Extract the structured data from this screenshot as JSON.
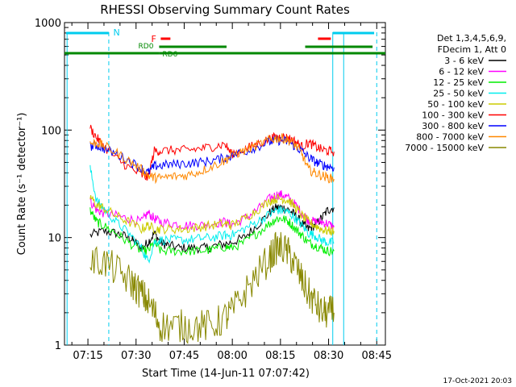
{
  "chart_data": {
    "type": "line",
    "title": "RHESSI Observing Summary Count Rates",
    "xlabel": "Start Time (14-Jun-11 07:07:42)",
    "ylabel": "Count Rate (s⁻¹ detector⁻¹)",
    "y_scale": "log",
    "ylim": [
      1,
      1000
    ],
    "xlim_minutes": [
      0,
      100
    ],
    "x_ticks": [
      {
        "label": "07:15",
        "minute": 7.3
      },
      {
        "label": "07:30",
        "minute": 22.3
      },
      {
        "label": "07:45",
        "minute": 37.3
      },
      {
        "label": "08:00",
        "minute": 52.3
      },
      {
        "label": "08:15",
        "minute": 67.3
      },
      {
        "label": "08:30",
        "minute": 82.3
      },
      {
        "label": "08:45",
        "minute": 97.3
      }
    ],
    "y_ticks": [
      {
        "label": "1",
        "value": 1
      },
      {
        "label": "10",
        "value": 10
      },
      {
        "label": "100",
        "value": 100
      },
      {
        "label": "1000",
        "value": 1000
      }
    ],
    "legend": {
      "placement": "right",
      "header": [
        "Det 1,3,4,5,6,9,",
        "FDecim 1, Att 0"
      ],
      "entries": [
        {
          "label": "3 - 6 keV",
          "color": "#000000"
        },
        {
          "label": "6 - 12 keV",
          "color": "#ff00ff"
        },
        {
          "label": "12 - 25 keV",
          "color": "#00ee00"
        },
        {
          "label": "25 - 50 keV",
          "color": "#00eeee"
        },
        {
          "label": "50 - 100 keV",
          "color": "#cccc00"
        },
        {
          "label": "100 - 300 keV",
          "color": "#ff0000"
        },
        {
          "label": "300 - 800 keV",
          "color": "#0000ff"
        },
        {
          "label": "800 - 7000 keV",
          "color": "#ff8800"
        },
        {
          "label": "7000 - 15000 keV",
          "color": "#888800"
        }
      ]
    },
    "flags": [
      {
        "label": "N",
        "color": "#00ccee"
      },
      {
        "label": "F",
        "color": "#ff0000"
      },
      {
        "label": "RD0",
        "color": "#008800"
      },
      {
        "label": "RD6",
        "color": "#008800"
      }
    ],
    "series": [
      {
        "name": "3 - 6 keV",
        "color": "#000000",
        "points": [
          [
            8,
            10.5
          ],
          [
            12,
            11.5
          ],
          [
            16,
            11
          ],
          [
            20,
            10
          ],
          [
            22,
            9
          ],
          [
            24,
            8
          ],
          [
            26,
            9
          ],
          [
            28,
            11
          ],
          [
            30,
            9
          ],
          [
            32,
            8.5
          ],
          [
            36,
            8
          ],
          [
            40,
            8
          ],
          [
            44,
            8
          ],
          [
            48,
            8.5
          ],
          [
            52,
            9
          ],
          [
            56,
            10
          ],
          [
            60,
            13
          ],
          [
            64,
            17
          ],
          [
            66,
            19
          ],
          [
            68,
            19
          ],
          [
            70,
            18
          ],
          [
            72,
            16
          ],
          [
            74,
            13.5
          ],
          [
            76,
            12
          ],
          [
            78,
            13
          ],
          [
            80,
            15
          ],
          [
            82,
            18
          ],
          [
            84,
            19
          ]
        ]
      },
      {
        "name": "6 - 12 keV",
        "color": "#ff00ff",
        "points": [
          [
            8,
            22
          ],
          [
            10,
            18
          ],
          [
            12,
            17
          ],
          [
            16,
            16
          ],
          [
            20,
            15
          ],
          [
            24,
            14
          ],
          [
            26,
            17
          ],
          [
            28,
            15
          ],
          [
            30,
            14
          ],
          [
            34,
            13.5
          ],
          [
            38,
            13
          ],
          [
            42,
            13
          ],
          [
            46,
            13.5
          ],
          [
            50,
            14
          ],
          [
            52,
            13
          ],
          [
            56,
            15
          ],
          [
            60,
            18
          ],
          [
            64,
            23
          ],
          [
            66,
            25
          ],
          [
            68,
            25
          ],
          [
            70,
            23
          ],
          [
            72,
            20
          ],
          [
            74,
            17
          ],
          [
            76,
            14.5
          ],
          [
            78,
            14
          ],
          [
            80,
            14
          ],
          [
            82,
            13.5
          ],
          [
            84,
            12.5
          ]
        ]
      },
      {
        "name": "12 - 25 keV",
        "color": "#00ee00",
        "points": [
          [
            8,
            18
          ],
          [
            10,
            14
          ],
          [
            12,
            13
          ],
          [
            16,
            11
          ],
          [
            20,
            9
          ],
          [
            24,
            7.5
          ],
          [
            26,
            7.5
          ],
          [
            28,
            9
          ],
          [
            30,
            7.5
          ],
          [
            34,
            7.5
          ],
          [
            38,
            7.5
          ],
          [
            42,
            7.5
          ],
          [
            46,
            7.7
          ],
          [
            50,
            8.2
          ],
          [
            52,
            8
          ],
          [
            56,
            9
          ],
          [
            60,
            11
          ],
          [
            64,
            13.5
          ],
          [
            66,
            15
          ],
          [
            68,
            15
          ],
          [
            70,
            14
          ],
          [
            72,
            12
          ],
          [
            74,
            10.5
          ],
          [
            76,
            9
          ],
          [
            78,
            8.5
          ],
          [
            80,
            8
          ],
          [
            82,
            7.5
          ],
          [
            84,
            7.5
          ]
        ]
      },
      {
        "name": "25 - 50 keV",
        "color": "#00eeee",
        "points": [
          [
            8,
            44
          ],
          [
            10,
            22
          ],
          [
            12,
            19
          ],
          [
            16,
            14
          ],
          [
            20,
            11
          ],
          [
            24,
            8
          ],
          [
            26,
            6
          ],
          [
            28,
            9
          ],
          [
            30,
            9.5
          ],
          [
            34,
            9.5
          ],
          [
            38,
            9.5
          ],
          [
            42,
            9.8
          ],
          [
            46,
            10
          ],
          [
            50,
            10.5
          ],
          [
            52,
            10.5
          ],
          [
            56,
            12
          ],
          [
            60,
            14
          ],
          [
            64,
            16.5
          ],
          [
            66,
            18
          ],
          [
            68,
            18
          ],
          [
            70,
            17
          ],
          [
            72,
            15
          ],
          [
            74,
            13
          ],
          [
            76,
            11
          ],
          [
            78,
            10.5
          ],
          [
            80,
            9.5
          ],
          [
            82,
            9
          ],
          [
            84,
            9
          ]
        ]
      },
      {
        "name": "50 - 100 keV",
        "color": "#cccc00",
        "points": [
          [
            8,
            24
          ],
          [
            10,
            20
          ],
          [
            12,
            19
          ],
          [
            16,
            16
          ],
          [
            20,
            14
          ],
          [
            24,
            12
          ],
          [
            26,
            13
          ],
          [
            28,
            12
          ],
          [
            30,
            12
          ],
          [
            34,
            12
          ],
          [
            38,
            12
          ],
          [
            42,
            12.5
          ],
          [
            46,
            13
          ],
          [
            50,
            13.5
          ],
          [
            52,
            13
          ],
          [
            56,
            15
          ],
          [
            60,
            18
          ],
          [
            64,
            22
          ],
          [
            66,
            23
          ],
          [
            68,
            23
          ],
          [
            70,
            22
          ],
          [
            72,
            19
          ],
          [
            74,
            16
          ],
          [
            76,
            14
          ],
          [
            78,
            13
          ],
          [
            80,
            12
          ],
          [
            82,
            11.5
          ],
          [
            84,
            11.5
          ]
        ]
      },
      {
        "name": "100 - 300 keV",
        "color": "#ff0000",
        "points": [
          [
            8,
            105
          ],
          [
            10,
            85
          ],
          [
            12,
            72
          ],
          [
            16,
            55
          ],
          [
            20,
            45
          ],
          [
            24,
            38
          ],
          [
            26,
            36
          ],
          [
            28,
            64
          ],
          [
            30,
            64
          ],
          [
            34,
            65
          ],
          [
            38,
            65
          ],
          [
            42,
            67
          ],
          [
            46,
            70
          ],
          [
            50,
            74
          ],
          [
            52,
            60
          ],
          [
            56,
            66
          ],
          [
            60,
            74
          ],
          [
            64,
            83
          ],
          [
            66,
            86
          ],
          [
            68,
            86
          ],
          [
            70,
            84
          ],
          [
            72,
            78
          ],
          [
            74,
            70
          ],
          [
            76,
            76
          ],
          [
            78,
            71
          ],
          [
            80,
            66
          ],
          [
            82,
            64
          ],
          [
            84,
            63
          ]
        ]
      },
      {
        "name": "300 - 800 keV",
        "color": "#0000ff",
        "points": [
          [
            8,
            70
          ],
          [
            10,
            72
          ],
          [
            12,
            68
          ],
          [
            16,
            60
          ],
          [
            20,
            52
          ],
          [
            24,
            44
          ],
          [
            26,
            40
          ],
          [
            28,
            46
          ],
          [
            30,
            47
          ],
          [
            34,
            48
          ],
          [
            38,
            49
          ],
          [
            42,
            50
          ],
          [
            46,
            52
          ],
          [
            50,
            55
          ],
          [
            52,
            58
          ],
          [
            56,
            63
          ],
          [
            60,
            70
          ],
          [
            64,
            78
          ],
          [
            66,
            80
          ],
          [
            68,
            80
          ],
          [
            70,
            77
          ],
          [
            72,
            70
          ],
          [
            74,
            64
          ],
          [
            76,
            56
          ],
          [
            78,
            51
          ],
          [
            80,
            48
          ],
          [
            82,
            46
          ],
          [
            84,
            45
          ]
        ]
      },
      {
        "name": "800 - 7000 keV",
        "color": "#ff8800",
        "points": [
          [
            8,
            75
          ],
          [
            10,
            76
          ],
          [
            12,
            72
          ],
          [
            16,
            62
          ],
          [
            20,
            52
          ],
          [
            24,
            43
          ],
          [
            26,
            38
          ],
          [
            28,
            36
          ],
          [
            30,
            36
          ],
          [
            34,
            37
          ],
          [
            38,
            38
          ],
          [
            42,
            41
          ],
          [
            46,
            46
          ],
          [
            50,
            52
          ],
          [
            52,
            58
          ],
          [
            56,
            64
          ],
          [
            60,
            72
          ],
          [
            64,
            81
          ],
          [
            66,
            84
          ],
          [
            68,
            84
          ],
          [
            70,
            80
          ],
          [
            72,
            72
          ],
          [
            74,
            60
          ],
          [
            76,
            43
          ],
          [
            78,
            40
          ],
          [
            80,
            38
          ],
          [
            82,
            36
          ],
          [
            84,
            35
          ]
        ]
      },
      {
        "name": "7000 - 15000 keV",
        "color": "#888800",
        "points": [
          [
            8,
            6
          ],
          [
            12,
            6
          ],
          [
            16,
            5
          ],
          [
            20,
            4
          ],
          [
            22,
            3.5
          ],
          [
            24,
            3
          ],
          [
            26,
            2.5
          ],
          [
            28,
            2
          ],
          [
            30,
            1.5
          ],
          [
            34,
            1.5
          ],
          [
            38,
            1.5
          ],
          [
            42,
            1.5
          ],
          [
            46,
            1.5
          ],
          [
            50,
            1.8
          ],
          [
            52,
            2
          ],
          [
            56,
            3
          ],
          [
            60,
            4.5
          ],
          [
            64,
            6.5
          ],
          [
            66,
            8
          ],
          [
            68,
            8
          ],
          [
            70,
            7
          ],
          [
            72,
            5.5
          ],
          [
            74,
            4
          ],
          [
            76,
            3
          ],
          [
            78,
            2.5
          ],
          [
            80,
            2
          ],
          [
            82,
            2
          ],
          [
            84,
            2
          ]
        ]
      }
    ]
  },
  "footer": {
    "date": "17-Oct-2021 20:03"
  }
}
